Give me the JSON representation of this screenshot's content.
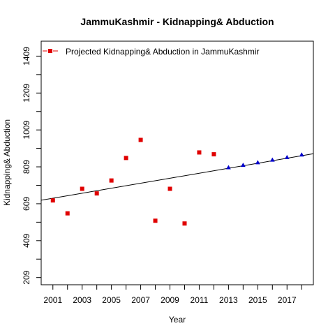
{
  "chart_data": {
    "type": "scatter",
    "title": "JammuKashmir  -  Kidnapping& Abduction",
    "xlabel": "Year",
    "ylabel": "Kidnapping& Abduction",
    "xlim": [
      2000.2,
      2018.8
    ],
    "ylim": [
      170,
      1490
    ],
    "x_ticks": [
      2001,
      2003,
      2005,
      2007,
      2009,
      2011,
      2013,
      2015,
      2017
    ],
    "x_minor_ticks": [
      2002,
      2004,
      2006,
      2008,
      2010,
      2012,
      2014,
      2016,
      2018
    ],
    "y_ticks": [
      209,
      409,
      609,
      809,
      1009,
      1209,
      1409
    ],
    "grid": false,
    "legend_position": "top-left",
    "series": [
      {
        "name": "",
        "color": "#e00000",
        "marker": "square",
        "points": [
          {
            "x": 2001,
            "y": 627
          },
          {
            "x": 2002,
            "y": 557
          },
          {
            "x": 2003,
            "y": 690
          },
          {
            "x": 2004,
            "y": 665
          },
          {
            "x": 2005,
            "y": 735
          },
          {
            "x": 2006,
            "y": 857
          },
          {
            "x": 2007,
            "y": 955
          },
          {
            "x": 2008,
            "y": 517
          },
          {
            "x": 2009,
            "y": 690
          },
          {
            "x": 2010,
            "y": 502
          },
          {
            "x": 2011,
            "y": 887
          },
          {
            "x": 2012,
            "y": 877
          }
        ]
      },
      {
        "name": "Projected  Kidnapping& Abduction  in  JammuKashmir",
        "color": "#0000cc",
        "marker": "triangle",
        "points": [
          {
            "x": 2013,
            "y": 805
          },
          {
            "x": 2014,
            "y": 818
          },
          {
            "x": 2015,
            "y": 832
          },
          {
            "x": 2016,
            "y": 846
          },
          {
            "x": 2017,
            "y": 860
          },
          {
            "x": 2018,
            "y": 874
          }
        ]
      }
    ],
    "trend_line": {
      "color": "#000000",
      "points": [
        {
          "x": 2000.2,
          "y": 628
        },
        {
          "x": 2018.8,
          "y": 880
        }
      ]
    },
    "legend": {
      "label": "Projected  Kidnapping& Abduction  in  JammuKashmir",
      "marker_color": "#e00000",
      "line_color": "#e00000"
    }
  }
}
